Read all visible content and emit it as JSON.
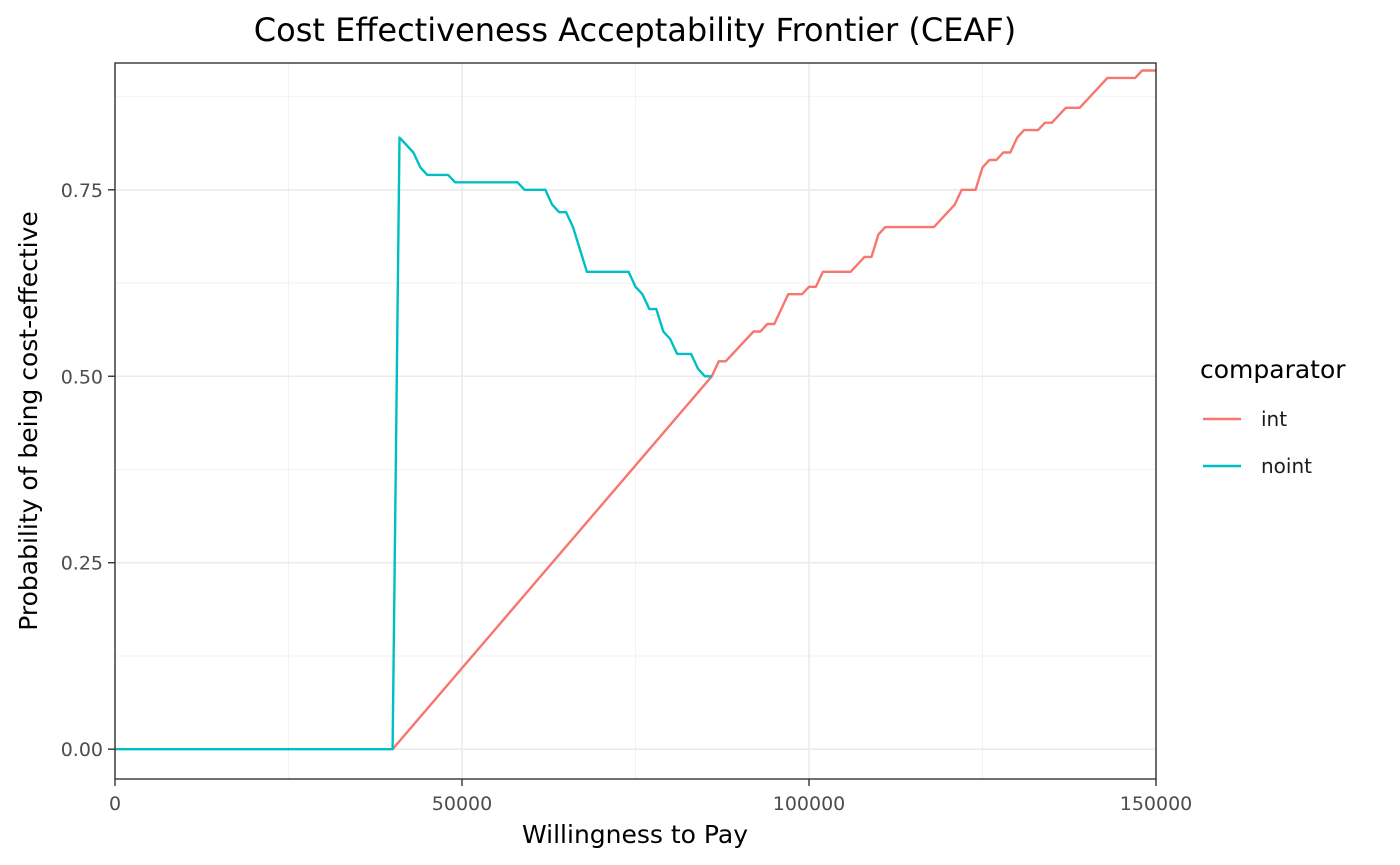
{
  "chart_data": {
    "type": "line",
    "title": "Cost Effectiveness Acceptability Frontier (CEAF)",
    "xlabel": "Willingness to Pay",
    "ylabel": "Probability of being cost-effective",
    "xlim": [
      0,
      150000
    ],
    "ylim": [
      -0.04,
      0.92
    ],
    "x_ticks": [
      0,
      50000,
      100000,
      150000
    ],
    "x_tick_labels": [
      "0",
      "50000",
      "100000",
      "150000"
    ],
    "y_ticks": [
      0,
      0.25,
      0.5,
      0.75
    ],
    "y_tick_labels": [
      "0.00",
      "0.25",
      "0.50",
      "0.75"
    ],
    "grid": true,
    "legend": {
      "title": "comparator",
      "position": "right"
    },
    "series": [
      {
        "name": "int",
        "color": "#F8766D",
        "points": [
          [
            40000,
            0.0
          ],
          [
            86000,
            0.5
          ],
          [
            87000,
            0.52
          ],
          [
            88000,
            0.52
          ],
          [
            92000,
            0.56
          ],
          [
            93000,
            0.56
          ],
          [
            94000,
            0.57
          ],
          [
            95000,
            0.57
          ],
          [
            97000,
            0.61
          ],
          [
            99000,
            0.61
          ],
          [
            100000,
            0.62
          ],
          [
            101000,
            0.62
          ],
          [
            102000,
            0.64
          ],
          [
            106000,
            0.64
          ],
          [
            108000,
            0.66
          ],
          [
            109000,
            0.66
          ],
          [
            110000,
            0.69
          ],
          [
            111000,
            0.7
          ],
          [
            118000,
            0.7
          ],
          [
            121000,
            0.73
          ],
          [
            122000,
            0.75
          ],
          [
            124000,
            0.75
          ],
          [
            125000,
            0.78
          ],
          [
            126000,
            0.79
          ],
          [
            127000,
            0.79
          ],
          [
            128000,
            0.8
          ],
          [
            129000,
            0.8
          ],
          [
            130000,
            0.82
          ],
          [
            131000,
            0.83
          ],
          [
            133000,
            0.83
          ],
          [
            134000,
            0.84
          ],
          [
            135000,
            0.84
          ],
          [
            137000,
            0.86
          ],
          [
            139000,
            0.86
          ],
          [
            143000,
            0.9
          ],
          [
            147000,
            0.9
          ],
          [
            148000,
            0.91
          ],
          [
            150000,
            0.91
          ]
        ]
      },
      {
        "name": "noint",
        "color": "#00BFC4",
        "points": [
          [
            0,
            0.0
          ],
          [
            40000,
            0.0
          ],
          [
            41000,
            0.82
          ],
          [
            43000,
            0.8
          ],
          [
            44000,
            0.78
          ],
          [
            45000,
            0.77
          ],
          [
            48000,
            0.77
          ],
          [
            49000,
            0.76
          ],
          [
            58000,
            0.76
          ],
          [
            59000,
            0.75
          ],
          [
            62000,
            0.75
          ],
          [
            63000,
            0.73
          ],
          [
            64000,
            0.72
          ],
          [
            65000,
            0.72
          ],
          [
            66000,
            0.7
          ],
          [
            68000,
            0.64
          ],
          [
            74000,
            0.64
          ],
          [
            75000,
            0.62
          ],
          [
            76000,
            0.61
          ],
          [
            77000,
            0.59
          ],
          [
            78000,
            0.59
          ],
          [
            79000,
            0.56
          ],
          [
            80000,
            0.55
          ],
          [
            81000,
            0.53
          ],
          [
            83000,
            0.53
          ],
          [
            84000,
            0.51
          ],
          [
            85000,
            0.5
          ],
          [
            86000,
            0.5
          ]
        ]
      }
    ]
  }
}
